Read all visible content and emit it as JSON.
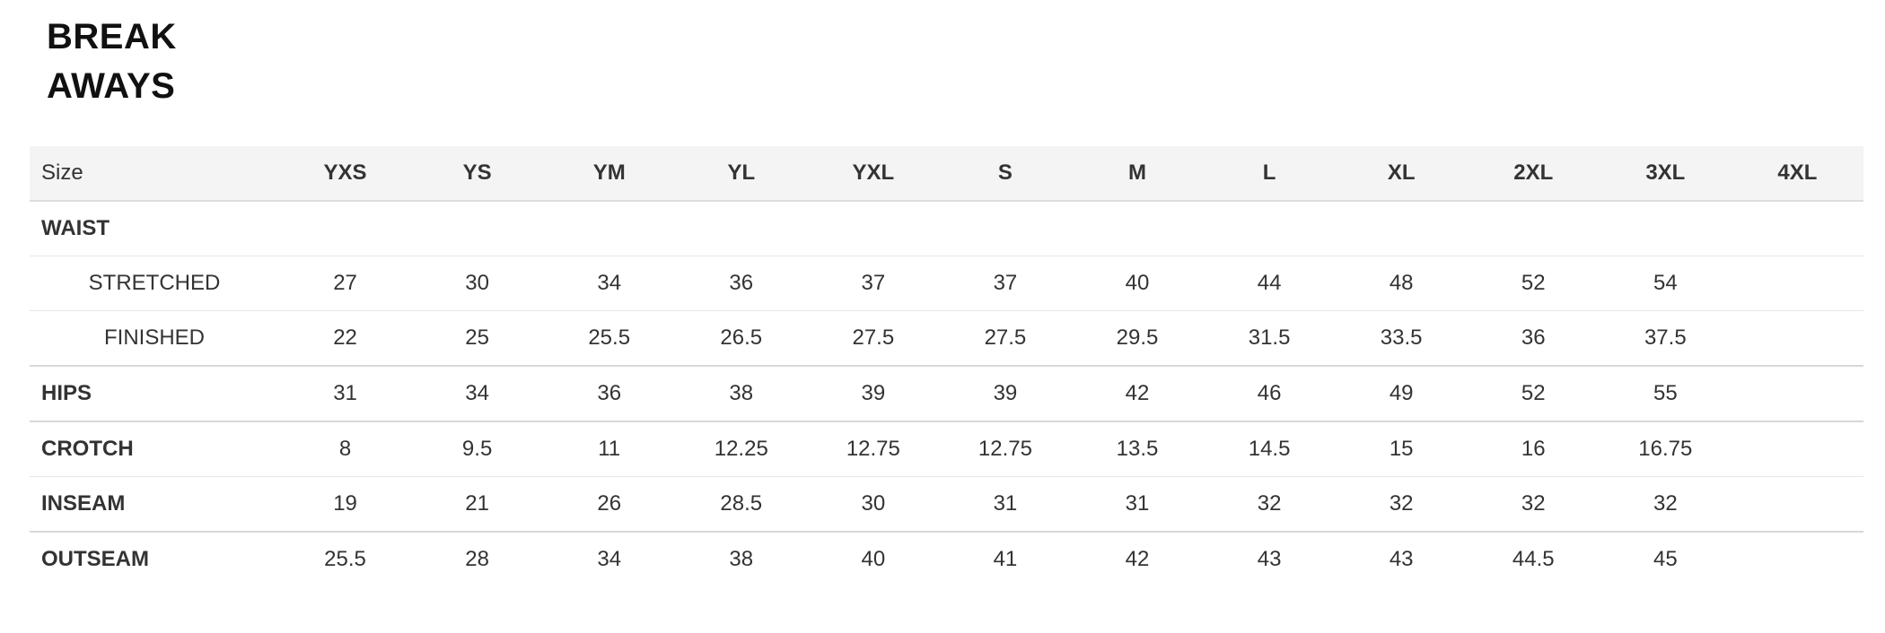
{
  "title": {
    "line1": "BREAK",
    "line2": "AWAYS"
  },
  "table": {
    "header_label": "Size",
    "sizes": [
      "YXS",
      "YS",
      "YM",
      "YL",
      "YXL",
      "S",
      "M",
      "L",
      "XL",
      "2XL",
      "3XL",
      "4XL"
    ],
    "rows": [
      {
        "label": "WAIST",
        "sub": false,
        "values": [
          "",
          "",
          "",
          "",
          "",
          "",
          "",
          "",
          "",
          "",
          "",
          ""
        ]
      },
      {
        "label": "STRETCHED",
        "sub": true,
        "values": [
          "27",
          "30",
          "34",
          "36",
          "37",
          "37",
          "40",
          "44",
          "48",
          "52",
          "54",
          ""
        ]
      },
      {
        "label": "FINISHED",
        "sub": true,
        "values": [
          "22",
          "25",
          "25.5",
          "26.5",
          "27.5",
          "27.5",
          "29.5",
          "31.5",
          "33.5",
          "36",
          "37.5",
          ""
        ]
      },
      {
        "label": "HIPS",
        "sub": false,
        "values": [
          "31",
          "34",
          "36",
          "38",
          "39",
          "39",
          "42",
          "46",
          "49",
          "52",
          "55",
          ""
        ]
      },
      {
        "label": "CROTCH",
        "sub": false,
        "values": [
          "8",
          "9.5",
          "11",
          "12.25",
          "12.75",
          "12.75",
          "13.5",
          "14.5",
          "15",
          "16",
          "16.75",
          ""
        ]
      },
      {
        "label": "INSEAM",
        "sub": false,
        "values": [
          "19",
          "21",
          "26",
          "28.5",
          "30",
          "31",
          "31",
          "32",
          "32",
          "32",
          "32",
          ""
        ]
      },
      {
        "label": "OUTSEAM",
        "sub": false,
        "values": [
          "25.5",
          "28",
          "34",
          "38",
          "40",
          "41",
          "42",
          "43",
          "43",
          "44.5",
          "45",
          ""
        ]
      }
    ]
  }
}
